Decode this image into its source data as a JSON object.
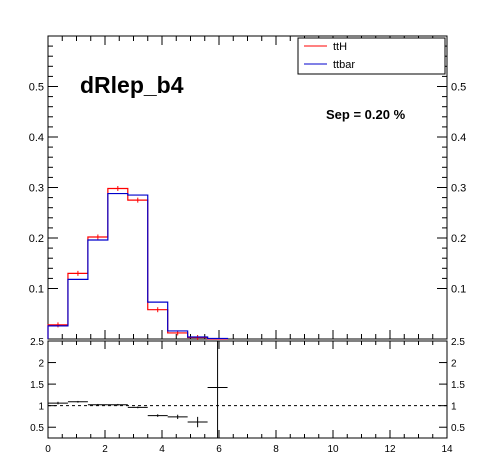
{
  "chart_data": [
    {
      "type": "line",
      "title": "dRlep_b4",
      "annotation": "Sep = 0.20 %",
      "xlim": [
        0,
        14
      ],
      "ylim": [
        0,
        0.6
      ],
      "y_ticks": [
        "0.1",
        "0.2",
        "0.3",
        "0.4",
        "0.5"
      ],
      "bin_edges": [
        0,
        0.7,
        1.4,
        2.1,
        2.8,
        3.5,
        4.2,
        4.9,
        5.6,
        6.3
      ],
      "legend": [
        "ttH",
        "ttbar"
      ],
      "legend_position": "top-right",
      "grid": false,
      "series": [
        {
          "name": "ttH",
          "color": "#ff0000",
          "values": [
            0.028,
            0.13,
            0.202,
            0.298,
            0.275,
            0.058,
            0.012,
            0.003,
            0.0
          ]
        },
        {
          "name": "ttbar",
          "color": "#0000cc",
          "values": [
            0.026,
            0.118,
            0.196,
            0.288,
            0.285,
            0.073,
            0.016,
            0.004,
            0.001
          ]
        }
      ]
    },
    {
      "type": "scatter",
      "description_ratio": true,
      "xlim": [
        0,
        14
      ],
      "ylim": [
        0.25,
        2.5
      ],
      "x_ticks": [
        "0",
        "2",
        "4",
        "6",
        "8",
        "10",
        "12",
        "14"
      ],
      "y_ticks": [
        "0.5",
        "1",
        "1.5",
        "2",
        "2.5"
      ],
      "reference_line": 1,
      "points": [
        {
          "x": 0.35,
          "y": 1.06,
          "yerr": 0.03
        },
        {
          "x": 1.05,
          "y": 1.09,
          "yerr": 0.02
        },
        {
          "x": 1.75,
          "y": 1.02,
          "yerr": 0.02
        },
        {
          "x": 2.45,
          "y": 1.02,
          "yerr": 0.02
        },
        {
          "x": 3.15,
          "y": 0.96,
          "yerr": 0.02
        },
        {
          "x": 3.85,
          "y": 0.77,
          "yerr": 0.03
        },
        {
          "x": 4.55,
          "y": 0.74,
          "yerr": 0.05
        },
        {
          "x": 5.25,
          "y": 0.62,
          "yerr": 0.12
        },
        {
          "x": 5.95,
          "y": 1.42,
          "yerr": 3.0
        }
      ]
    }
  ]
}
